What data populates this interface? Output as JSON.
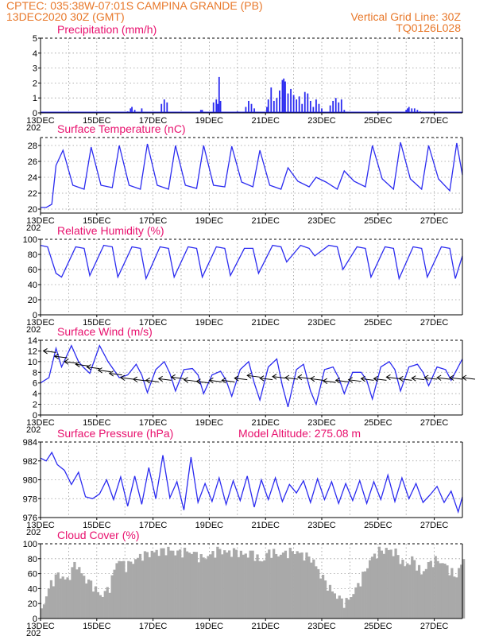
{
  "header": {
    "line1_left": "CPTEC:   035:38W-07:01S   CAMPINA GRANDE (PB)",
    "line2_left": "13DEC2020 30Z (GMT)",
    "line2_right": "Vertical Grid Line: 30Z",
    "line3_right": "TQ0126L028"
  },
  "colors": {
    "header": "#e8782a",
    "title": "#e8116e",
    "line": "#2b2bf0",
    "cloud": "#a9a9a9",
    "arrow": "#000000"
  },
  "x_axis": {
    "start_day": 13,
    "end_day": 28,
    "tick_labels": [
      "13DEC",
      "15DEC",
      "17DEC",
      "19DEC",
      "21DEC",
      "23DEC",
      "25DEC",
      "27DEC"
    ],
    "year_fragment": "202"
  },
  "chart_data": [
    {
      "id": "precip",
      "type": "bar",
      "title": "Precipitation (mm/h)",
      "ylim": [
        0,
        5
      ],
      "yticks": [
        0,
        1,
        2,
        3,
        4,
        5
      ],
      "series": [
        {
          "values": [
            [
              16.1,
              0.1
            ],
            [
              16.2,
              0.3
            ],
            [
              16.25,
              0.4
            ],
            [
              16.35,
              0.2
            ],
            [
              16.6,
              0.3
            ],
            [
              17.3,
              0.6
            ],
            [
              17.4,
              0.9
            ],
            [
              17.5,
              0.7
            ],
            [
              18.7,
              0.2
            ],
            [
              18.75,
              0.2
            ],
            [
              19.15,
              0.7
            ],
            [
              19.25,
              0.9
            ],
            [
              19.3,
              0.6
            ],
            [
              19.35,
              2.4
            ],
            [
              19.4,
              0.8
            ],
            [
              20.0,
              0.1
            ],
            [
              20.3,
              0.4
            ],
            [
              20.4,
              0.8
            ],
            [
              20.5,
              0.6
            ],
            [
              20.6,
              0.3
            ],
            [
              21.05,
              0.4
            ],
            [
              21.1,
              0.9
            ],
            [
              21.2,
              1.7
            ],
            [
              21.3,
              0.8
            ],
            [
              21.4,
              1.0
            ],
            [
              21.5,
              1.5
            ],
            [
              21.6,
              2.2
            ],
            [
              21.65,
              2.3
            ],
            [
              21.7,
              2.1
            ],
            [
              21.8,
              1.3
            ],
            [
              21.9,
              1.6
            ],
            [
              22.0,
              1.2
            ],
            [
              22.1,
              0.9
            ],
            [
              22.2,
              1.1
            ],
            [
              22.3,
              0.6
            ],
            [
              22.4,
              1.4
            ],
            [
              22.5,
              1.3
            ],
            [
              22.6,
              0.8
            ],
            [
              22.7,
              0.4
            ],
            [
              22.8,
              0.9
            ],
            [
              22.9,
              0.6
            ],
            [
              23.0,
              0.3
            ],
            [
              23.3,
              0.5
            ],
            [
              23.4,
              0.8
            ],
            [
              23.5,
              1.0
            ],
            [
              23.6,
              0.7
            ],
            [
              23.7,
              0.9
            ],
            [
              23.8,
              0.2
            ],
            [
              26.0,
              0.2
            ],
            [
              26.05,
              0.3
            ],
            [
              26.1,
              0.4
            ],
            [
              26.2,
              0.3
            ],
            [
              26.3,
              0.3
            ],
            [
              26.4,
              0.2
            ],
            [
              26.5,
              0.1
            ]
          ]
        }
      ]
    },
    {
      "id": "temp",
      "type": "line",
      "title": "Surface Temperature (nC)",
      "ylim": [
        19.5,
        29
      ],
      "yticks": [
        20,
        22,
        24,
        26,
        28
      ],
      "series": [
        {
          "days": [
            13.0,
            13.2,
            13.4,
            13.55,
            13.8,
            14.15,
            14.55,
            14.8,
            15.15,
            15.55,
            15.8,
            16.15,
            16.55,
            16.8,
            17.15,
            17.55,
            17.8,
            18.15,
            18.55,
            18.8,
            19.15,
            19.55,
            19.8,
            20.15,
            20.55,
            20.8,
            21.15,
            21.55,
            21.8,
            22.15,
            22.55,
            22.8,
            23.15,
            23.55,
            23.8,
            24.15,
            24.55,
            24.8,
            25.15,
            25.55,
            25.8,
            26.15,
            26.55,
            26.8,
            27.15,
            27.55,
            27.8,
            28.0
          ],
          "values": [
            20.2,
            20.2,
            20.6,
            25.5,
            27.4,
            23.0,
            22.5,
            27.8,
            23.0,
            22.7,
            28.0,
            23.0,
            22.5,
            28.2,
            23.0,
            22.5,
            28.0,
            23.0,
            22.6,
            28.0,
            23.0,
            22.8,
            27.9,
            23.4,
            22.8,
            27.4,
            23.0,
            22.5,
            25.2,
            23.5,
            22.8,
            24.0,
            23.4,
            22.5,
            24.8,
            23.5,
            22.8,
            28.0,
            23.8,
            22.5,
            28.4,
            23.8,
            22.5,
            28.0,
            23.8,
            22.3,
            28.3,
            24.3
          ]
        }
      ]
    },
    {
      "id": "rh",
      "type": "line",
      "title": "Relative Humidity (%)",
      "ylim": [
        0,
        100
      ],
      "yticks": [
        0,
        20,
        40,
        60,
        80,
        100
      ],
      "series": [
        {
          "days": [
            13.0,
            13.25,
            13.55,
            13.75,
            14.25,
            14.55,
            14.75,
            15.25,
            15.55,
            15.75,
            16.25,
            16.55,
            16.75,
            17.25,
            17.55,
            17.75,
            18.25,
            18.55,
            18.75,
            19.25,
            19.55,
            19.75,
            20.25,
            20.55,
            20.75,
            21.25,
            21.55,
            21.75,
            22.25,
            22.55,
            22.75,
            23.25,
            23.55,
            23.75,
            24.25,
            24.55,
            24.75,
            25.25,
            25.55,
            25.75,
            26.25,
            26.55,
            26.75,
            27.25,
            27.55,
            27.75,
            28.0
          ],
          "values": [
            92,
            90,
            55,
            50,
            90,
            88,
            52,
            92,
            90,
            50,
            90,
            88,
            48,
            90,
            88,
            50,
            90,
            88,
            50,
            90,
            88,
            52,
            88,
            88,
            55,
            92,
            90,
            70,
            92,
            88,
            78,
            92,
            90,
            60,
            90,
            88,
            50,
            90,
            88,
            48,
            90,
            88,
            50,
            90,
            88,
            48,
            78
          ]
        }
      ]
    },
    {
      "id": "wind",
      "type": "line",
      "title": "Surface Wind (m/s)",
      "ylim": [
        0,
        14
      ],
      "yticks": [
        0,
        2,
        4,
        6,
        8,
        10,
        12,
        14
      ],
      "series": [
        {
          "days": [
            13.0,
            13.3,
            13.55,
            13.75,
            14.1,
            14.35,
            14.55,
            14.75,
            15.1,
            15.4,
            15.6,
            15.8,
            16.1,
            16.4,
            16.6,
            16.8,
            17.1,
            17.4,
            17.6,
            17.8,
            18.1,
            18.4,
            18.6,
            18.8,
            19.1,
            19.4,
            19.6,
            19.8,
            20.1,
            20.4,
            20.6,
            20.8,
            21.1,
            21.4,
            21.6,
            21.8,
            22.1,
            22.35,
            22.6,
            22.8,
            23.1,
            23.4,
            23.6,
            23.8,
            24.1,
            24.4,
            24.6,
            24.8,
            25.1,
            25.4,
            25.6,
            25.8,
            26.1,
            26.4,
            26.6,
            26.8,
            27.1,
            27.4,
            27.6,
            27.8,
            28.0
          ],
          "values": [
            6,
            7,
            12.5,
            9,
            13,
            10,
            8.8,
            7.8,
            13,
            10,
            8.5,
            7,
            7.5,
            9.5,
            7.5,
            4.2,
            8.5,
            10,
            7.8,
            4.5,
            8.5,
            8.7,
            7.5,
            4.0,
            7.5,
            8.2,
            6.5,
            3.5,
            8.5,
            10,
            6.0,
            2.8,
            9.0,
            10.5,
            5.5,
            1.5,
            8.5,
            9.5,
            4.5,
            2.0,
            8.5,
            9.0,
            7.0,
            4.0,
            8.0,
            8.0,
            6.5,
            3.0,
            9.0,
            10.0,
            8.5,
            4.5,
            9.0,
            9.5,
            8.0,
            5.5,
            9.0,
            8.5,
            6.5,
            8.5,
            10.5
          ]
        }
      ],
      "barbs": [
        [
          13.1,
          12.0
        ],
        [
          13.5,
          11.0
        ],
        [
          13.85,
          10.0
        ],
        [
          14.25,
          9.5
        ],
        [
          14.65,
          9.0
        ],
        [
          15.05,
          8.4
        ],
        [
          15.45,
          7.8
        ],
        [
          15.85,
          7.0
        ],
        [
          16.3,
          6.7
        ],
        [
          16.75,
          6.5
        ],
        [
          17.2,
          6.8
        ],
        [
          17.65,
          7.1
        ],
        [
          18.1,
          6.6
        ],
        [
          18.55,
          6.3
        ],
        [
          19.0,
          6.5
        ],
        [
          19.45,
          6.5
        ],
        [
          19.9,
          6.9
        ],
        [
          20.35,
          7.4
        ],
        [
          20.8,
          6.9
        ],
        [
          21.25,
          7.2
        ],
        [
          21.7,
          7.0
        ],
        [
          22.15,
          7.1
        ],
        [
          22.6,
          6.8
        ],
        [
          23.05,
          6.4
        ],
        [
          23.5,
          6.5
        ],
        [
          23.95,
          6.6
        ],
        [
          24.4,
          6.8
        ],
        [
          24.85,
          6.8
        ],
        [
          25.3,
          7.1
        ],
        [
          25.75,
          6.8
        ],
        [
          26.2,
          6.9
        ],
        [
          26.65,
          7.0
        ],
        [
          27.1,
          7.0
        ],
        [
          27.55,
          7.0
        ],
        [
          28.0,
          7.0
        ]
      ]
    },
    {
      "id": "pressure",
      "type": "line",
      "title": "Surface Pressure (hPa)",
      "subtitle": "Model Altitude: 275.08 m",
      "ylim": [
        976,
        984
      ],
      "yticks": [
        976,
        978,
        980,
        982,
        984
      ],
      "series": [
        {
          "days": [
            13.0,
            13.2,
            13.4,
            13.6,
            13.85,
            14.1,
            14.35,
            14.6,
            14.85,
            15.1,
            15.35,
            15.6,
            15.85,
            16.1,
            16.35,
            16.6,
            16.85,
            17.1,
            17.35,
            17.6,
            17.85,
            18.1,
            18.35,
            18.6,
            18.85,
            19.1,
            19.35,
            19.6,
            19.85,
            20.1,
            20.35,
            20.6,
            20.85,
            21.1,
            21.35,
            21.6,
            21.85,
            22.1,
            22.35,
            22.6,
            22.85,
            23.1,
            23.35,
            23.6,
            23.85,
            24.1,
            24.35,
            24.6,
            24.85,
            25.1,
            25.35,
            25.6,
            25.85,
            26.1,
            26.35,
            26.6,
            26.85,
            27.1,
            27.35,
            27.6,
            27.85,
            28.0
          ],
          "values": [
            982.3,
            982.0,
            982.9,
            981.6,
            981.0,
            979.5,
            980.8,
            978.2,
            978.0,
            978.5,
            980.0,
            977.9,
            980.3,
            977.2,
            980.4,
            977.4,
            981.3,
            978.0,
            982.6,
            978.1,
            979.8,
            976.8,
            982.4,
            977.6,
            979.6,
            977.7,
            980.2,
            977.4,
            979.9,
            977.8,
            980.4,
            977.1,
            980.0,
            977.9,
            980.2,
            977.7,
            979.5,
            978.6,
            979.9,
            977.6,
            980.1,
            977.9,
            979.8,
            977.5,
            979.6,
            977.8,
            979.9,
            977.5,
            979.8,
            977.9,
            980.5,
            977.7,
            980.2,
            978.0,
            979.6,
            977.6,
            978.4,
            979.3,
            977.6,
            978.8,
            976.6,
            978.2
          ]
        }
      ]
    },
    {
      "id": "cloud",
      "type": "area",
      "title": "Cloud Cover (%)",
      "ylim": [
        0,
        100
      ],
      "yticks": [
        0,
        20,
        40,
        60,
        80,
        100
      ],
      "series": [
        {
          "days": [
            13.0,
            13.3,
            13.6,
            13.9,
            14.2,
            14.5,
            14.8,
            15.1,
            15.4,
            15.7,
            16.0,
            16.3,
            16.6,
            16.9,
            17.2,
            17.5,
            17.8,
            18.1,
            18.4,
            18.7,
            19.0,
            19.3,
            19.6,
            19.9,
            20.2,
            20.5,
            20.8,
            21.1,
            21.4,
            21.7,
            22.0,
            22.3,
            22.6,
            22.9,
            23.2,
            23.5,
            23.8,
            24.1,
            24.4,
            24.7,
            25.0,
            25.3,
            25.6,
            25.9,
            26.2,
            26.5,
            26.8,
            27.1,
            27.4,
            27.7,
            28.0
          ],
          "values": [
            12,
            45,
            60,
            50,
            75,
            55,
            45,
            30,
            40,
            80,
            70,
            78,
            85,
            88,
            90,
            92,
            88,
            90,
            88,
            80,
            85,
            92,
            88,
            90,
            85,
            88,
            75,
            90,
            85,
            88,
            90,
            85,
            80,
            60,
            42,
            30,
            20,
            35,
            55,
            80,
            90,
            92,
            88,
            70,
            80,
            60,
            75,
            78,
            70,
            55,
            78
          ]
        }
      ]
    }
  ]
}
